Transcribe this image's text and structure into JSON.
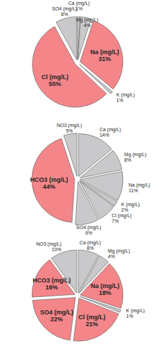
{
  "chart_data": [
    {
      "type": "pie",
      "categories": [
        "Ca (mg/L)",
        "Mg (mg/L)",
        "Na (mg/L)",
        "K (mg/L)",
        "Cl (mg/L)",
        "SO4 (mg/L)"
      ],
      "values": [
        1,
        4,
        31,
        1,
        55,
        8
      ],
      "value_labels": [
        "1%",
        "4%",
        "31%",
        "1%",
        "55%",
        "8%"
      ],
      "colors": [
        "#c9c9cc",
        "#c9c9cc",
        "#f4868a",
        "#c9c9cc",
        "#f4868a",
        "#c9c9cc"
      ],
      "data_labels": true
    },
    {
      "type": "pie",
      "categories": [
        "Ca (mg/L)",
        "Mg (mg/L)",
        "Na (mg/L)",
        "K (mg/L)",
        "Cl (mg/L)",
        "SO4 (mg/L)",
        "HCO3 (mg/L)",
        "NO3 (mg/L)"
      ],
      "values": [
        14,
        8,
        11,
        2,
        7,
        9,
        44,
        5
      ],
      "value_labels": [
        "14%",
        "8%",
        "11%",
        "2%",
        "7%",
        "9%",
        "44%",
        "5%"
      ],
      "colors": [
        "#c9c9cc",
        "#c9c9cc",
        "#c9c9cc",
        "#c9c9cc",
        "#c9c9cc",
        "#c9c9cc",
        "#f4868a",
        "#c9c9cc"
      ],
      "data_labels": true
    },
    {
      "type": "pie",
      "categories": [
        "Ca (mg/L)",
        "Mg (mg/L)",
        "Na (mg/L)",
        "K (mg/L)",
        "Cl (mg/L)",
        "SO4 (mg/L)",
        "HCO3 (mg/L)",
        "NO3 (mg/L)"
      ],
      "values": [
        8,
        4,
        18,
        1,
        21,
        22,
        16,
        10
      ],
      "value_labels": [
        "8%",
        "4%",
        "18%",
        "1%",
        "21%",
        "22%",
        "16%",
        "10%"
      ],
      "colors": [
        "#c9c9cc",
        "#c9c9cc",
        "#f4868a",
        "#c9c9cc",
        "#f4868a",
        "#f4868a",
        "#f4868a",
        "#c9c9cc"
      ],
      "data_labels": true
    }
  ]
}
